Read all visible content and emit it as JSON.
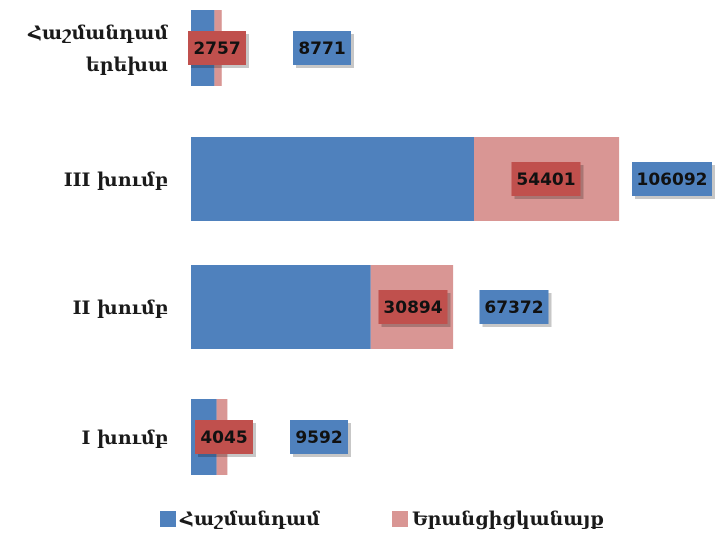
{
  "chart_data": {
    "type": "bar",
    "orientation": "horizontal",
    "stacked": true,
    "categories": [
      "Հաշմանդամ երեխա",
      "III խումբ",
      "II խումբ",
      "I խումբ"
    ],
    "category_lines": [
      [
        "Հաշմանդամ",
        "երեխա"
      ],
      [
        "III խումբ"
      ],
      [
        "II խումբ"
      ],
      [
        "I խումբ"
      ]
    ],
    "series": [
      {
        "name": "Հաշմանդամ",
        "color": "#4f81bd",
        "values": [
          8771,
          106092,
          67372,
          9592
        ]
      },
      {
        "name": "Երանցիցկանայք",
        "color": "#d99694",
        "values": [
          2757,
          54401,
          30894,
          4045
        ]
      }
    ],
    "data_labels": {
      "total": [
        "8771",
        "106092",
        "67372",
        "9592"
      ],
      "women": [
        "2757",
        "54401",
        "30894",
        "4045"
      ]
    },
    "label_colors": {
      "total_box": "#4f81bd",
      "women_box": "#c0504d"
    },
    "legend": {
      "position": "bottom",
      "items": [
        {
          "label": "Հաշմանդամ",
          "color": "#4f81bd"
        },
        {
          "label": "Երանցիցկանայք",
          "color": "#d99694"
        }
      ]
    },
    "title": "",
    "xlabel": "",
    "ylabel": "",
    "grid": false,
    "axes_visible": false
  }
}
